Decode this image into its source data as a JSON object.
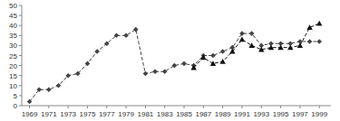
{
  "chart_data": {
    "type": "line",
    "series": [
      {
        "x": [
          1969,
          1970,
          1971,
          1972,
          1973,
          1974,
          1975,
          1976,
          1977,
          1978,
          1979,
          1980,
          1981,
          1982,
          1983,
          1984,
          1985,
          1986,
          1987,
          1988,
          1989,
          1990,
          1991,
          1992,
          1993,
          1994,
          1995,
          1996,
          1997,
          1998,
          1999
        ],
        "values": [
          2,
          8,
          8,
          10,
          15,
          16,
          21,
          27,
          31,
          35,
          35,
          38,
          16,
          17,
          17,
          20,
          21,
          20,
          25,
          25,
          27,
          29,
          36,
          36,
          30,
          31,
          31,
          31,
          32,
          32,
          32
        ],
        "color": "#444444",
        "marker": "diamond",
        "line_style": "dashed"
      },
      {
        "x": [
          1986,
          1987,
          1988,
          1989,
          1990,
          1991,
          1992,
          1993,
          1994,
          1995,
          1996,
          1997,
          1998,
          1999
        ],
        "values": [
          19,
          24,
          21,
          22,
          27,
          33,
          30,
          28,
          29,
          29,
          29,
          30,
          39,
          41
        ],
        "color": "#111111",
        "marker": "triangle",
        "line_style": "dashed"
      }
    ],
    "xlim": [
      1968.2,
      2000.2
    ],
    "xticks": [
      1969,
      1971,
      1973,
      1975,
      1977,
      1979,
      1981,
      1983,
      1985,
      1987,
      1989,
      1991,
      1993,
      1995,
      1997,
      1999
    ],
    "ylim": [
      0,
      50
    ],
    "yticks": [
      0,
      5,
      10,
      15,
      20,
      25,
      30,
      35,
      40,
      45,
      50
    ],
    "grid": false
  }
}
